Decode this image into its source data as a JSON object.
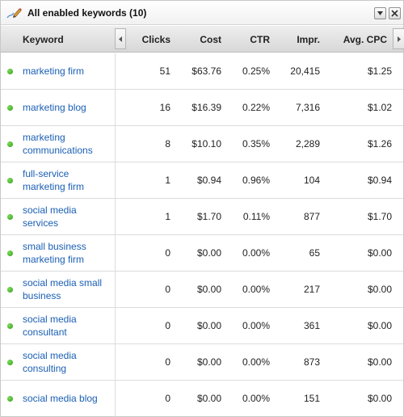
{
  "widget": {
    "title": "All enabled keywords (10)"
  },
  "columns": {
    "keyword": "Keyword",
    "clicks": "Clicks",
    "cost": "Cost",
    "ctr": "CTR",
    "impr": "Impr.",
    "avg_cpc": "Avg. CPC"
  },
  "rows": [
    {
      "keyword": "marketing firm",
      "clicks": "51",
      "cost": "$63.76",
      "ctr": "0.25%",
      "impr": "20,415",
      "avg_cpc": "$1.25"
    },
    {
      "keyword": "marketing blog",
      "clicks": "16",
      "cost": "$16.39",
      "ctr": "0.22%",
      "impr": "7,316",
      "avg_cpc": "$1.02"
    },
    {
      "keyword": "marketing communications",
      "clicks": "8",
      "cost": "$10.10",
      "ctr": "0.35%",
      "impr": "2,289",
      "avg_cpc": "$1.26"
    },
    {
      "keyword": "full-service marketing firm",
      "clicks": "1",
      "cost": "$0.94",
      "ctr": "0.96%",
      "impr": "104",
      "avg_cpc": "$0.94"
    },
    {
      "keyword": "social media services",
      "clicks": "1",
      "cost": "$1.70",
      "ctr": "0.11%",
      "impr": "877",
      "avg_cpc": "$1.70"
    },
    {
      "keyword": "small business marketing firm",
      "clicks": "0",
      "cost": "$0.00",
      "ctr": "0.00%",
      "impr": "65",
      "avg_cpc": "$0.00"
    },
    {
      "keyword": "social media small business",
      "clicks": "0",
      "cost": "$0.00",
      "ctr": "0.00%",
      "impr": "217",
      "avg_cpc": "$0.00"
    },
    {
      "keyword": "social media consultant",
      "clicks": "0",
      "cost": "$0.00",
      "ctr": "0.00%",
      "impr": "361",
      "avg_cpc": "$0.00"
    },
    {
      "keyword": "social media consulting",
      "clicks": "0",
      "cost": "$0.00",
      "ctr": "0.00%",
      "impr": "873",
      "avg_cpc": "$0.00"
    },
    {
      "keyword": "social media blog",
      "clicks": "0",
      "cost": "$0.00",
      "ctr": "0.00%",
      "impr": "151",
      "avg_cpc": "$0.00"
    }
  ],
  "status_color": "#3aa01e",
  "link_color": "#1a5fb4"
}
